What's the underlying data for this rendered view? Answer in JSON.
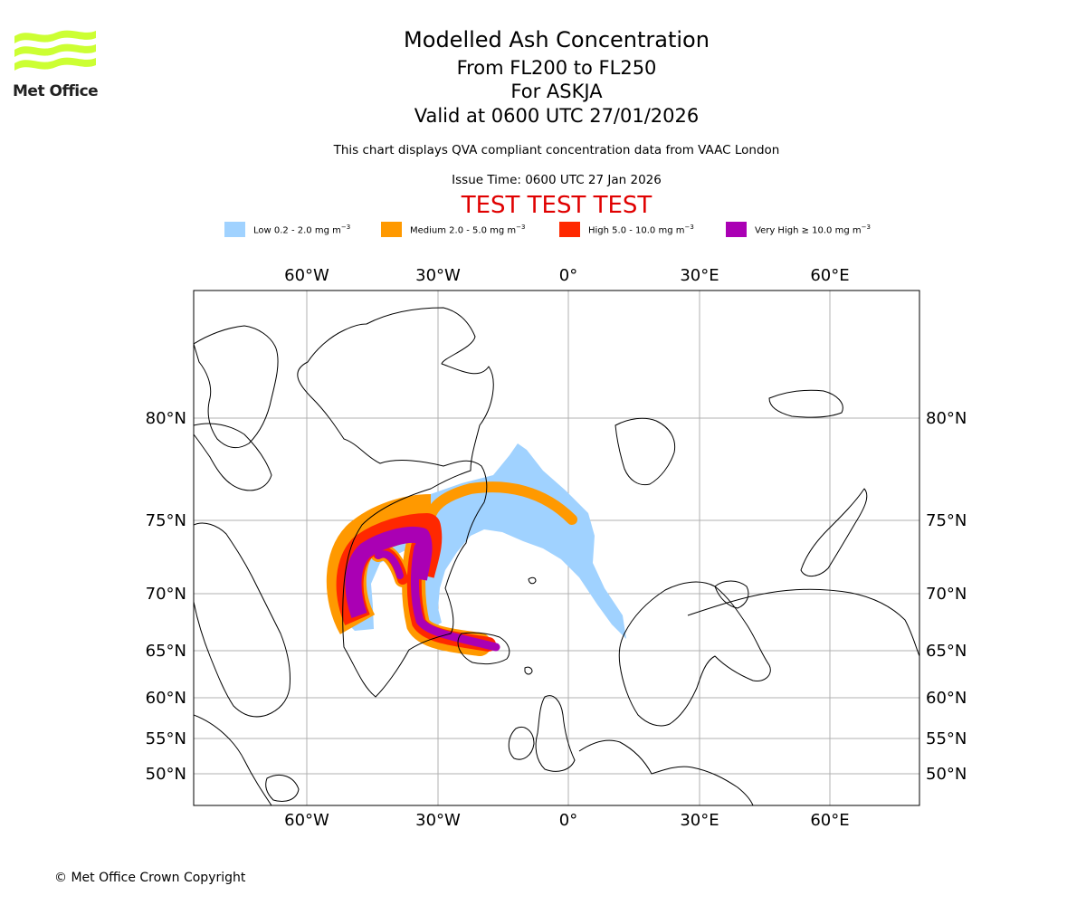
{
  "logo": {
    "text": "Met Office",
    "colors": {
      "waves": "#ccff33",
      "text": "#222222"
    },
    "icon": "met-office-waves-icon"
  },
  "header": {
    "title": "Modelled Ash Concentration",
    "levels": "From FL200 to FL250",
    "volcano": "For ASKJA",
    "valid": "Valid at 0600 UTC 27/01/2026",
    "description": "This chart displays QVA compliant concentration data from VAAC London",
    "issue_time": "Issue Time: 0600 UTC 27 Jan 2026",
    "test_banner": "TEST TEST TEST"
  },
  "legend": [
    {
      "text": "Low 0.2 - 2.0 mg m",
      "sup": "−3",
      "color": "#a0d2ff"
    },
    {
      "text": "Medium 2.0 - 5.0 mg m",
      "sup": "−3",
      "color": "#ff9900"
    },
    {
      "text": "High 5.0 - 10.0 mg m",
      "sup": "−3",
      "color": "#ff2800"
    },
    {
      "text": "Very High ≥ 10.0 mg m",
      "sup": "−3",
      "color": "#aa00b4"
    }
  ],
  "map": {
    "longitude_labels": [
      "60°W",
      "30°W",
      "0°",
      "30°E",
      "60°E"
    ],
    "latitude_labels": [
      "80°N",
      "75°N",
      "70°N",
      "65°N",
      "60°N",
      "55°N",
      "50°N"
    ],
    "gridlines": true,
    "grid_color": "#b0b0b0",
    "coast_color": "#000000"
  },
  "footer": {
    "copyright": "© Met Office Crown Copyright"
  }
}
